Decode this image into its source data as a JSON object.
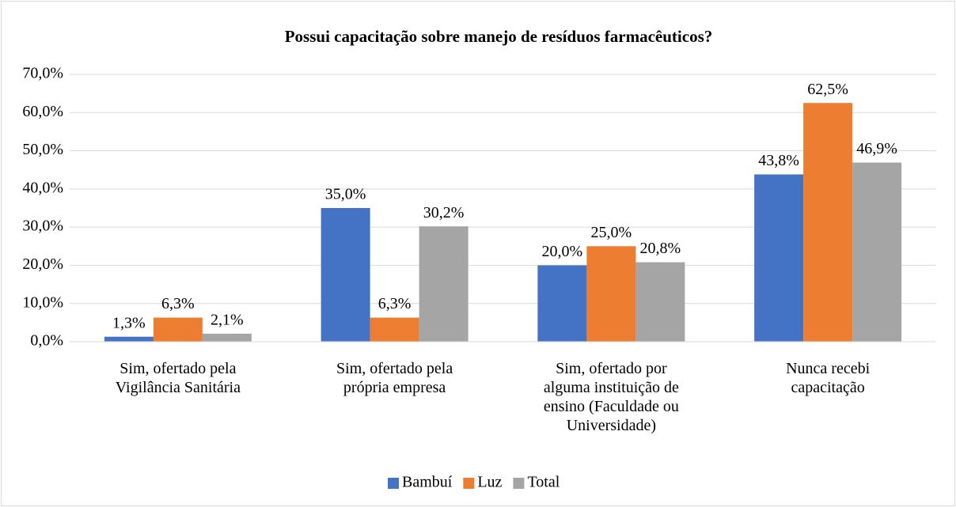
{
  "chart_data": {
    "type": "bar",
    "title": "Possui capacitação sobre manejo de resíduos farmacêuticos?",
    "categories": [
      "Sim, ofertado pela\nVigilância Sanitária",
      "Sim, ofertado pela\nprópria empresa",
      "Sim, ofertado por\nalguma instituição de\nensino (Faculdade ou\nUniversidade)",
      "Nunca recebi\ncapacitação"
    ],
    "series": [
      {
        "name": "Bambuí",
        "color": "#4472c4",
        "values": [
          1.3,
          35.0,
          20.0,
          43.8
        ],
        "value_labels": [
          "1,3%",
          "35,0%",
          "20,0%",
          "43,8%"
        ]
      },
      {
        "name": "Luz",
        "color": "#ed7d31",
        "values": [
          6.3,
          6.3,
          25.0,
          62.5
        ],
        "value_labels": [
          "6,3%",
          "6,3%",
          "25,0%",
          "62,5%"
        ]
      },
      {
        "name": "Total",
        "color": "#a5a5a5",
        "values": [
          2.1,
          30.2,
          20.8,
          46.9
        ],
        "value_labels": [
          "2,1%",
          "30,2%",
          "20,8%",
          "46,9%"
        ]
      }
    ],
    "ylim": [
      0,
      70
    ],
    "yticks": [
      {
        "value": 0,
        "label": "0,0%"
      },
      {
        "value": 10,
        "label": "10,0%"
      },
      {
        "value": 20,
        "label": "20,0%"
      },
      {
        "value": 30,
        "label": "30,0%"
      },
      {
        "value": 40,
        "label": "40,0%"
      },
      {
        "value": 50,
        "label": "50,0%"
      },
      {
        "value": 60,
        "label": "60,0%"
      },
      {
        "value": 70,
        "label": "70,0%"
      }
    ],
    "grid": true,
    "legend": "bottom"
  }
}
